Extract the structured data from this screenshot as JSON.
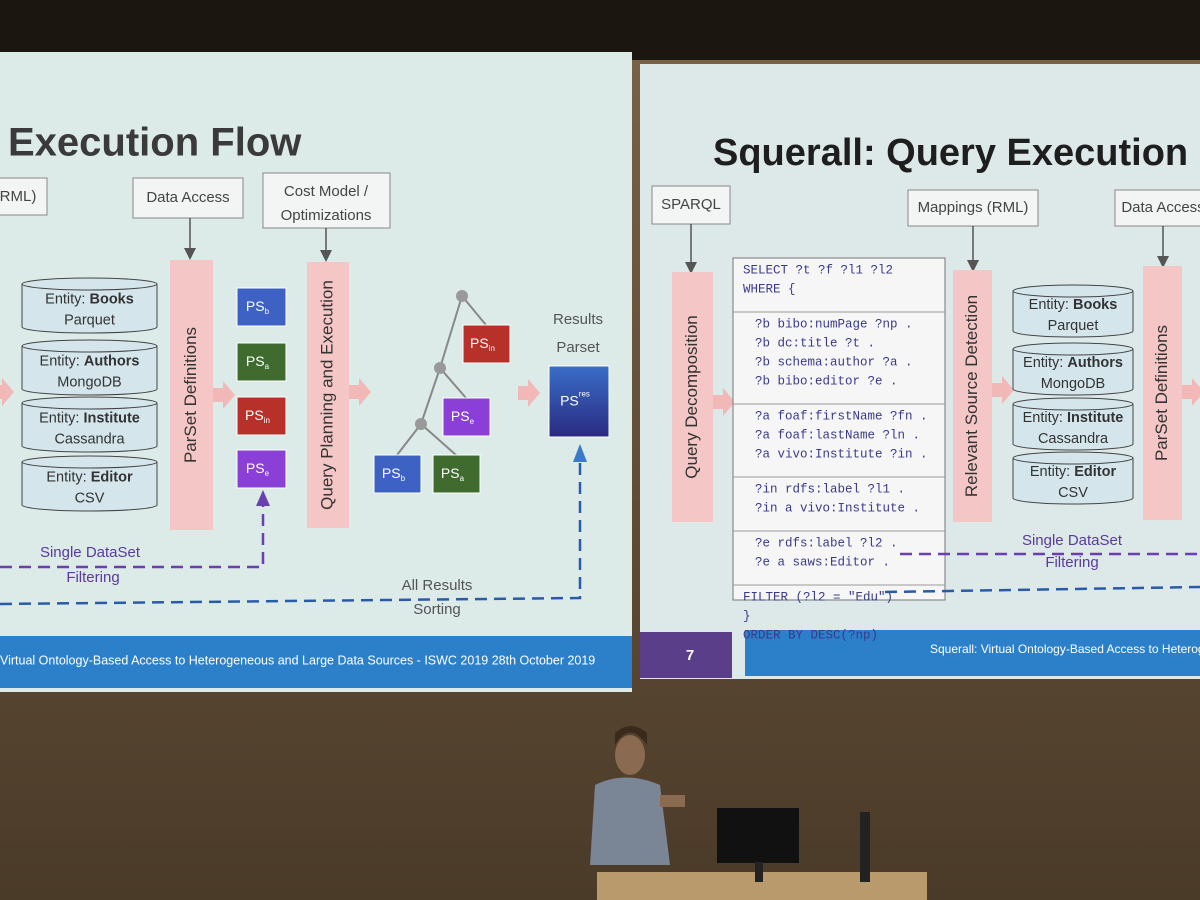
{
  "left_slide": {
    "title": "Execution Flow",
    "box_rml": "RML)",
    "box_data_access": "Data Access",
    "box_cost_model": [
      "Cost Model /",
      "Optimizations"
    ],
    "entities": [
      {
        "label": "Entity: ",
        "name": "Books",
        "format": "Parquet"
      },
      {
        "label": "Entity: ",
        "name": "Authors",
        "format": "MongoDB"
      },
      {
        "label": "Entity: ",
        "name": "Institute",
        "format": "Cassandra"
      },
      {
        "label": "Entity: ",
        "name": "Editor",
        "format": "CSV"
      }
    ],
    "parset_definitions": "ParSet Definitions",
    "ps_boxes": [
      {
        "text": "PS",
        "sub": "b",
        "color": "#3d62c4"
      },
      {
        "text": "PS",
        "sub": "a",
        "color": "#3f6b2f"
      },
      {
        "text": "PS",
        "sub": "in",
        "color": "#b8302a"
      },
      {
        "text": "PS",
        "sub": "e",
        "color": "#8a3fd6"
      }
    ],
    "query_planning": "Query Planning and Execution",
    "tree_boxes": [
      {
        "text": "PS",
        "sub": "in",
        "color": "#b8302a"
      },
      {
        "text": "PS",
        "sub": "e",
        "color": "#8a3fd6"
      },
      {
        "text": "PS",
        "sub": "b",
        "color": "#3d62c4"
      },
      {
        "text": "PS",
        "sub": "a",
        "color": "#3f6b2f"
      }
    ],
    "results": [
      "Results",
      "Parset"
    ],
    "ps_res": {
      "text": "PS",
      "sup": "res"
    },
    "single_dataset": [
      "Single DataSet",
      "Filtering"
    ],
    "all_results": [
      "All Results",
      "Sorting"
    ],
    "footer": "Virtual Ontology-Based Access to Heterogeneous and Large Data Sources - ISWC 2019 28th October 2019"
  },
  "right_slide": {
    "title": "Squerall: Query Execution F",
    "box_sparql": "SPARQL",
    "box_mappings": "Mappings (RML)",
    "box_data_access": "Data Access",
    "query_decomposition": "Query Decomposition",
    "code_groups": [
      [
        "SELECT ?t ?f ?l1 ?l2",
        "WHERE {"
      ],
      [
        "?b bibo:numPage ?np .",
        "?b dc:title ?t .",
        "?b schema:author ?a .",
        "?b bibo:editor ?e ."
      ],
      [
        "?a foaf:firstName ?fn .",
        "?a foaf:lastName ?ln .",
        "?a vivo:Institute ?in ."
      ],
      [
        "?in rdfs:label ?l1 .",
        "?in a vivo:Institute ."
      ],
      [
        "?e rdfs:label ?l2 .",
        "?e a saws:Editor ."
      ],
      [
        "FILTER (?l2 = \"Edu\")",
        "}",
        "ORDER BY DESC(?np)"
      ]
    ],
    "relevant_source": "Relevant Source Detection",
    "entities": [
      {
        "label": "Entity: ",
        "name": "Books",
        "format": "Parquet"
      },
      {
        "label": "Entity: ",
        "name": "Authors",
        "format": "MongoDB"
      },
      {
        "label": "Entity: ",
        "name": "Institute",
        "format": "Cassandra"
      },
      {
        "label": "Entity: ",
        "name": "Editor",
        "format": "CSV"
      }
    ],
    "parset_definitions": "ParSet Definitions",
    "single_dataset": [
      "Single DataSet",
      "Filtering"
    ],
    "page_number": "7",
    "footer": "Squerall: Virtual Ontology-Based Access to Heterogen"
  }
}
